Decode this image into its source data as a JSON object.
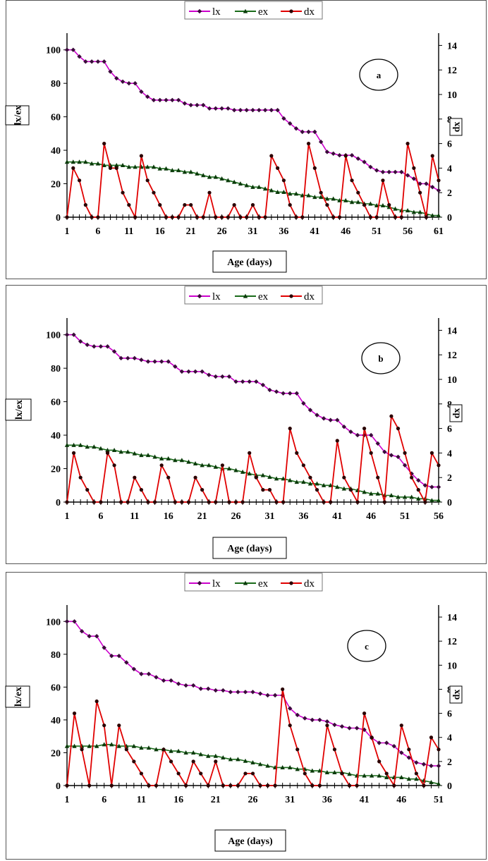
{
  "colors": {
    "lx": "#cc00cc",
    "ex": "#1a6b1a",
    "dx": "#e00000"
  },
  "chart_data": [
    {
      "type": "line",
      "tag": "a",
      "xlabel": "Age (days)",
      "ylabel": "lx/ex",
      "y2label": "dx",
      "xticks": [
        "1",
        "6",
        "11",
        "16",
        "21",
        "26",
        "31",
        "36",
        "41",
        "46",
        "51",
        "56",
        "61"
      ],
      "yticks": [
        "0",
        "20",
        "40",
        "60",
        "80",
        "100"
      ],
      "y2ticks": [
        "0",
        "2",
        "4",
        "6",
        "8",
        "10",
        "12",
        "14"
      ],
      "ylim": [
        0,
        110
      ],
      "y2lim": [
        0,
        15
      ],
      "xlim": [
        1,
        61
      ],
      "legend": [
        "lx",
        "ex",
        "dx"
      ],
      "x_start": 1,
      "series": [
        {
          "name": "lx",
          "axis": "left",
          "values": [
            100,
            100,
            96,
            93,
            93,
            93,
            93,
            87,
            83,
            81,
            80,
            80,
            75,
            72,
            70,
            70,
            70,
            70,
            70,
            68,
            67,
            67,
            67,
            65,
            65,
            65,
            65,
            64,
            64,
            64,
            64,
            64,
            64,
            64,
            64,
            59,
            56,
            53,
            51,
            51,
            51,
            45,
            39,
            38,
            37,
            37,
            37,
            35,
            33,
            30,
            28,
            27,
            27,
            27,
            27,
            25,
            23,
            20,
            20,
            18,
            16
          ]
        },
        {
          "name": "ex",
          "axis": "left",
          "values": [
            33,
            33,
            33,
            33,
            32,
            32,
            31,
            31,
            31,
            31,
            30,
            30,
            30,
            30,
            30,
            29,
            29,
            28,
            28,
            27,
            27,
            26,
            25,
            24,
            24,
            23,
            22,
            21,
            20,
            19,
            18,
            18,
            17,
            16,
            15,
            15,
            14,
            14,
            13,
            13,
            12,
            12,
            11,
            11,
            10,
            10,
            9,
            9,
            8,
            8,
            7,
            7,
            6,
            5,
            4,
            4,
            3,
            3,
            2,
            1,
            1
          ]
        },
        {
          "name": "dx",
          "axis": "right",
          "values": [
            0,
            4,
            3,
            1,
            0,
            0,
            6,
            4,
            4,
            2,
            1,
            0,
            5,
            3,
            2,
            1,
            0,
            0,
            0,
            1,
            1,
            0,
            0,
            2,
            0,
            0,
            0,
            1,
            0,
            0,
            1,
            0,
            0,
            5,
            4,
            3,
            1,
            0,
            0,
            6,
            4,
            2,
            1,
            0,
            0,
            5,
            3,
            2,
            1,
            0,
            0,
            3,
            1,
            0,
            0,
            6,
            4,
            2,
            0,
            5,
            3
          ]
        }
      ]
    },
    {
      "type": "line",
      "tag": "b",
      "xlabel": "Age (days)",
      "ylabel": "lx/ex",
      "y2label": "dx",
      "xticks": [
        "1",
        "6",
        "11",
        "16",
        "21",
        "26",
        "31",
        "36",
        "41",
        "46",
        "51",
        "56"
      ],
      "yticks": [
        "0",
        "20",
        "40",
        "60",
        "80",
        "100"
      ],
      "y2ticks": [
        "0",
        "2",
        "4",
        "6",
        "8",
        "10",
        "12",
        "14"
      ],
      "ylim": [
        0,
        110
      ],
      "y2lim": [
        0,
        15
      ],
      "xlim": [
        1,
        56
      ],
      "legend": [
        "lx",
        "ex",
        "dx"
      ],
      "x_start": 1,
      "series": [
        {
          "name": "lx",
          "axis": "left",
          "values": [
            100,
            100,
            96,
            94,
            93,
            93,
            93,
            90,
            86,
            86,
            86,
            85,
            84,
            84,
            84,
            84,
            81,
            78,
            78,
            78,
            78,
            76,
            75,
            75,
            75,
            72,
            72,
            72,
            72,
            70,
            67,
            66,
            65,
            65,
            65,
            59,
            55,
            52,
            50,
            49,
            49,
            45,
            42,
            40,
            40,
            40,
            35,
            30,
            28,
            27,
            22,
            17,
            13,
            10,
            9,
            9
          ]
        },
        {
          "name": "ex",
          "axis": "left",
          "values": [
            34,
            34,
            34,
            33,
            33,
            32,
            31,
            31,
            30,
            30,
            29,
            28,
            28,
            27,
            26,
            26,
            25,
            25,
            24,
            23,
            22,
            22,
            21,
            20,
            20,
            19,
            18,
            17,
            16,
            16,
            15,
            14,
            14,
            13,
            12,
            12,
            11,
            11,
            10,
            10,
            9,
            8,
            8,
            7,
            6,
            5,
            5,
            4,
            4,
            3,
            3,
            3,
            2,
            2,
            1,
            1
          ]
        },
        {
          "name": "dx",
          "axis": "right",
          "values": [
            0,
            4,
            2,
            1,
            0,
            0,
            4,
            3,
            0,
            0,
            2,
            1,
            0,
            0,
            3,
            2,
            0,
            0,
            0,
            2,
            1,
            0,
            0,
            3,
            0,
            0,
            0,
            4,
            2,
            1,
            1,
            0,
            0,
            6,
            4,
            3,
            2,
            1,
            0,
            0,
            5,
            2,
            1,
            0,
            6,
            4,
            2,
            0,
            7,
            6,
            4,
            2,
            1,
            0,
            4,
            3
          ]
        }
      ]
    },
    {
      "type": "line",
      "tag": "c",
      "xlabel": "Age (days)",
      "ylabel": "lx/ex",
      "y2label": "dx",
      "xticks": [
        "1",
        "6",
        "11",
        "16",
        "21",
        "26",
        "31",
        "36",
        "41",
        "46",
        "51"
      ],
      "yticks": [
        "0",
        "20",
        "40",
        "60",
        "80",
        "100"
      ],
      "y2ticks": [
        "0",
        "2",
        "4",
        "6",
        "8",
        "10",
        "12",
        "14"
      ],
      "ylim": [
        0,
        110
      ],
      "y2lim": [
        0,
        15
      ],
      "xlim": [
        1,
        51
      ],
      "legend": [
        "lx",
        "ex",
        "dx"
      ],
      "x_start": 1,
      "series": [
        {
          "name": "lx",
          "axis": "left",
          "values": [
            100,
            100,
            94,
            91,
            91,
            84,
            79,
            79,
            75,
            71,
            68,
            68,
            66,
            64,
            64,
            62,
            61,
            61,
            59,
            59,
            58,
            58,
            57,
            57,
            57,
            57,
            56,
            55,
            55,
            55,
            47,
            43,
            41,
            40,
            40,
            39,
            37,
            36,
            35,
            35,
            34,
            29,
            26,
            26,
            24,
            20,
            17,
            14,
            13,
            12,
            12
          ]
        },
        {
          "name": "ex",
          "axis": "left",
          "values": [
            24,
            24,
            24,
            24,
            24,
            25,
            25,
            24,
            24,
            24,
            23,
            23,
            22,
            22,
            21,
            21,
            20,
            20,
            19,
            18,
            18,
            17,
            16,
            16,
            15,
            14,
            13,
            12,
            11,
            11,
            11,
            10,
            10,
            9,
            9,
            8,
            8,
            8,
            7,
            6,
            6,
            6,
            6,
            5,
            5,
            5,
            4,
            4,
            3,
            2,
            1
          ]
        },
        {
          "name": "dx",
          "axis": "right",
          "values": [
            0,
            6,
            3,
            0,
            7,
            5,
            0,
            5,
            3,
            2,
            1,
            0,
            0,
            3,
            2,
            1,
            0,
            2,
            1,
            0,
            2,
            0,
            0,
            0,
            1,
            1,
            0,
            0,
            0,
            8,
            5,
            3,
            1,
            0,
            0,
            5,
            3,
            1,
            0,
            0,
            6,
            4,
            2,
            1,
            0,
            5,
            3,
            1,
            0,
            4,
            3
          ]
        }
      ]
    }
  ]
}
